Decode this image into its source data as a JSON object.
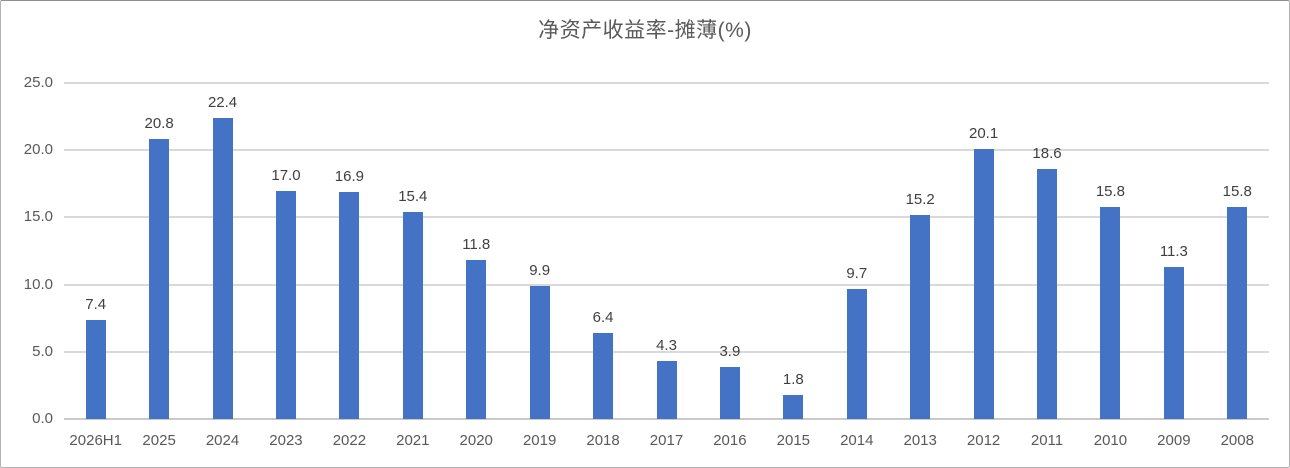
{
  "chart_data": {
    "type": "bar",
    "title": "净资产收益率-摊薄(%)",
    "categories": [
      "2026H1",
      "2025",
      "2024",
      "2023",
      "2022",
      "2021",
      "2020",
      "2019",
      "2018",
      "2017",
      "2016",
      "2015",
      "2014",
      "2013",
      "2012",
      "2011",
      "2010",
      "2009",
      "2008"
    ],
    "values": [
      7.4,
      20.8,
      22.4,
      17.0,
      16.9,
      15.4,
      11.8,
      9.9,
      6.4,
      4.3,
      3.9,
      1.8,
      9.7,
      15.2,
      20.1,
      18.6,
      15.8,
      11.3,
      15.8
    ],
    "xlabel": "",
    "ylabel": "",
    "ylim": [
      0,
      25
    ],
    "yticks": [
      0,
      5,
      10,
      15,
      20,
      25
    ],
    "ytick_labels": [
      "0.0",
      "5.0",
      "10.0",
      "15.0",
      "20.0",
      "25.0"
    ],
    "grid": true,
    "legend_position": "none",
    "data_labels": true,
    "colors": {
      "bar": "#4472C4",
      "gridline": "#D9D9D9",
      "axis_line": "#C9C9C9",
      "title_text": "#595959",
      "tick_text": "#595959",
      "data_label_text": "#404040"
    }
  }
}
